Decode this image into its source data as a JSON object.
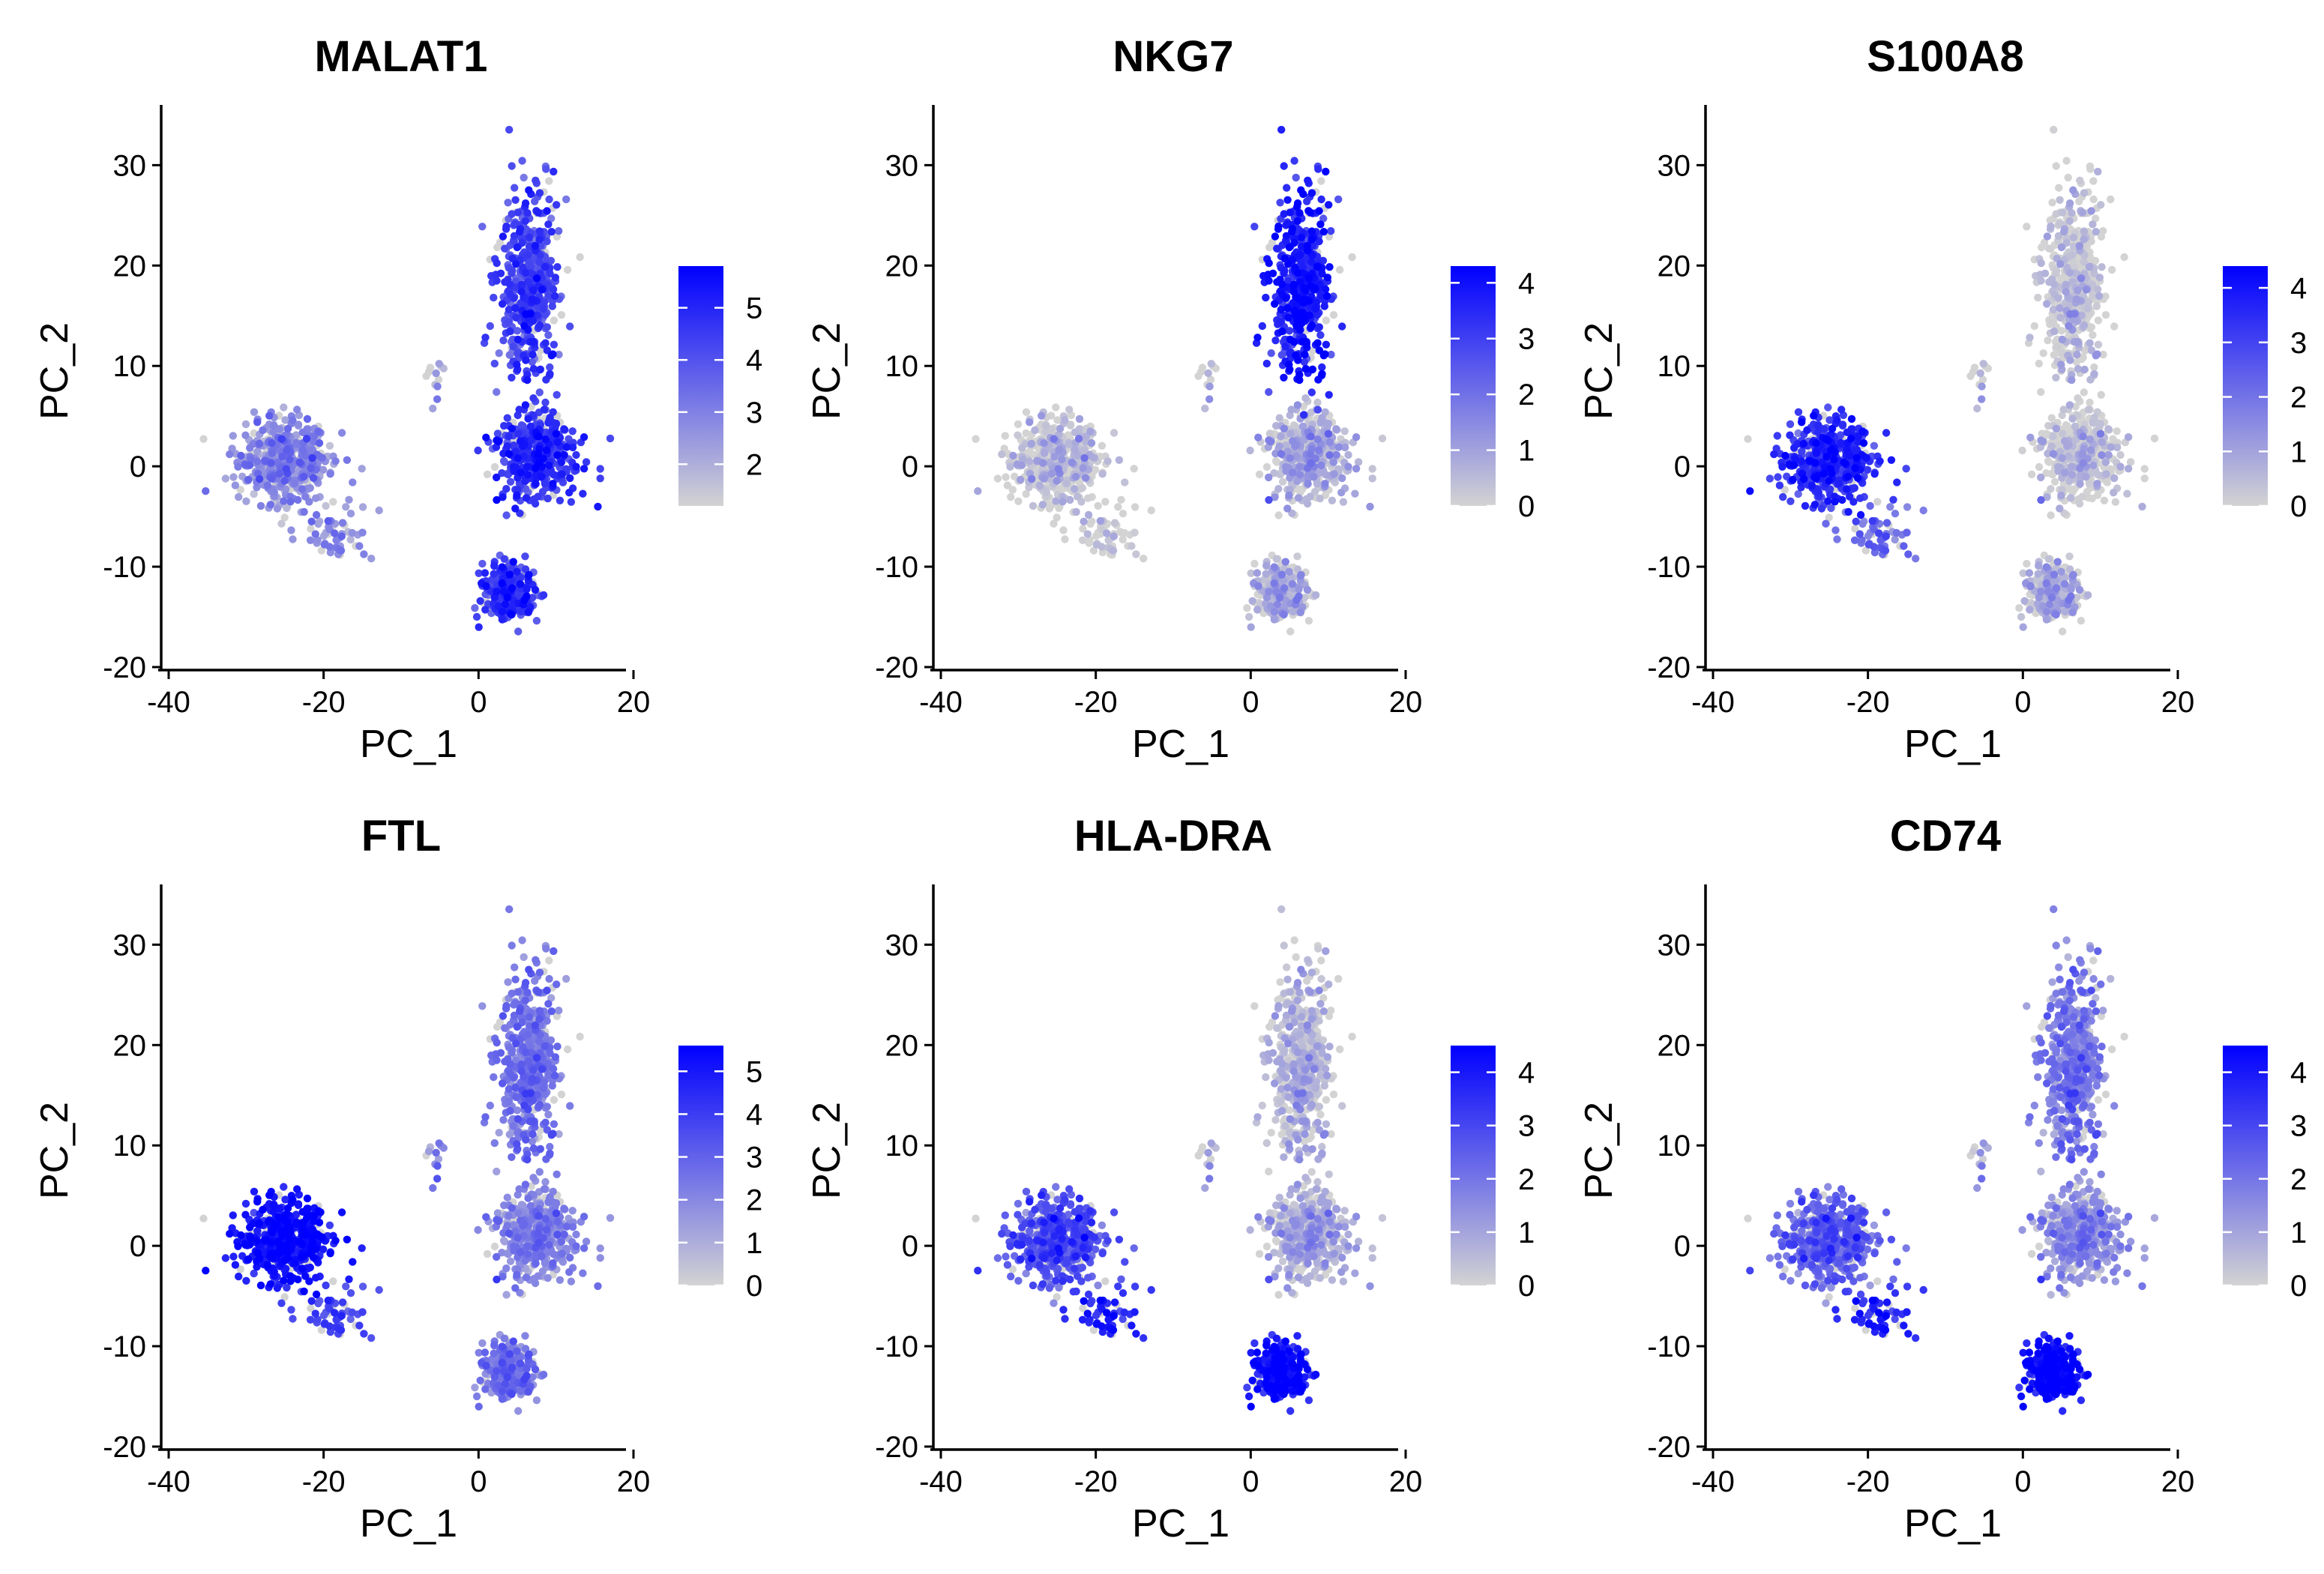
{
  "chart_data": {
    "type": "scatter",
    "description_of_points": "Feature plots of gene expression on PCA embedding; each panel shares the same cell layout (PC_1 vs PC_2) and colors cells from lightgrey (low) to blue (high) expression.",
    "shared": {
      "xlabel": "PC_1",
      "ylabel": "PC_2",
      "xlim": [
        -40,
        20
      ],
      "ylim": [
        -20,
        36
      ],
      "xticks": [
        -40,
        -20,
        0,
        20
      ],
      "yticks": [
        -20,
        -10,
        0,
        10,
        20,
        30
      ],
      "color_low": "#d3d3d3",
      "color_high": "#0000ff"
    },
    "clusters": [
      {
        "name": "left-cluster",
        "x_center": -24,
        "y_center": 0.5,
        "x_spread": 5.5,
        "y_spread": 3.5,
        "n": 520
      },
      {
        "name": "left-tail",
        "x_center": -18,
        "y_center": -7,
        "x_spread": 4.5,
        "y_spread": 2.5,
        "n": 60
      },
      {
        "name": "upper-column",
        "x_center": 7.5,
        "y_center": 18,
        "x_spread": 3.5,
        "y_spread": 9,
        "n": 520
      },
      {
        "name": "middle-column",
        "x_center": 8.5,
        "y_center": 1,
        "x_spread": 4.5,
        "y_spread": 4,
        "n": 430
      },
      {
        "name": "bottom-cluster",
        "x_center": 5,
        "y_center": -12.5,
        "x_spread": 3.2,
        "y_spread": 2.3,
        "n": 300
      },
      {
        "name": "small-scatter",
        "x_center": -5,
        "y_center": 8,
        "x_spread": 2,
        "y_spread": 2,
        "n": 12
      }
    ],
    "panels": [
      {
        "title": "MALAT1",
        "legend_range": [
          1.2,
          5.8
        ],
        "legend_ticks": [
          "2",
          "3",
          "4",
          "5"
        ],
        "legend_tick_values": [
          2,
          3,
          4,
          5
        ],
        "cluster_expression": {
          "left-cluster": 2.6,
          "left-tail": 2.8,
          "upper-column": 4.2,
          "middle-column": 4.6,
          "bottom-cluster": 4.4,
          "small-scatter": 1.8
        }
      },
      {
        "title": "NKG7",
        "legend_range": [
          0,
          4.3
        ],
        "legend_ticks": [
          "0",
          "1",
          "2",
          "3",
          "4"
        ],
        "legend_tick_values": [
          0,
          1,
          2,
          3,
          4
        ],
        "cluster_expression": {
          "left-cluster": 0.05,
          "left-tail": 0.05,
          "upper-column": 3.6,
          "middle-column": 0.6,
          "bottom-cluster": 0.4,
          "small-scatter": 0.0
        }
      },
      {
        "title": "S100A8",
        "legend_range": [
          0,
          4.4
        ],
        "legend_ticks": [
          "0",
          "1",
          "2",
          "3",
          "4"
        ],
        "legend_tick_values": [
          0,
          1,
          2,
          3,
          4
        ],
        "cluster_expression": {
          "left-cluster": 3.3,
          "left-tail": 2.2,
          "upper-column": 0.05,
          "middle-column": 0.1,
          "bottom-cluster": 0.4,
          "small-scatter": 0.0
        }
      },
      {
        "title": "FTL",
        "legend_range": [
          0,
          5.6
        ],
        "legend_ticks": [
          "0",
          "1",
          "2",
          "3",
          "4",
          "5"
        ],
        "legend_tick_values": [
          0,
          1,
          2,
          3,
          4,
          5
        ],
        "cluster_expression": {
          "left-cluster": 5.0,
          "left-tail": 3.8,
          "upper-column": 2.4,
          "middle-column": 2.0,
          "bottom-cluster": 2.3,
          "small-scatter": 2.0
        }
      },
      {
        "title": "HLA-DRA",
        "legend_range": [
          0,
          4.5
        ],
        "legend_ticks": [
          "0",
          "1",
          "2",
          "3",
          "4"
        ],
        "legend_tick_values": [
          0,
          1,
          2,
          3,
          4
        ],
        "cluster_expression": {
          "left-cluster": 2.6,
          "left-tail": 3.8,
          "upper-column": 0.4,
          "middle-column": 0.7,
          "bottom-cluster": 4.0,
          "small-scatter": 0.5
        }
      },
      {
        "title": "CD74",
        "legend_range": [
          0,
          4.5
        ],
        "legend_ticks": [
          "0",
          "1",
          "2",
          "3",
          "4"
        ],
        "legend_tick_values": [
          0,
          1,
          2,
          3,
          4
        ],
        "cluster_expression": {
          "left-cluster": 2.2,
          "left-tail": 3.8,
          "upper-column": 1.7,
          "middle-column": 1.3,
          "bottom-cluster": 4.2,
          "small-scatter": 0.8
        }
      }
    ]
  }
}
